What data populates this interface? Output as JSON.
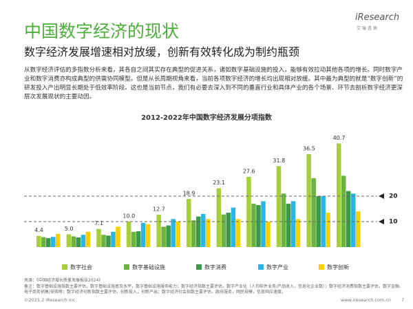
{
  "header": {
    "title": "中国数字经济的现状",
    "subtitle": "数字经济发展增速相对放缓，创新有效转化成为制约瓶颈",
    "logo": "iResearch",
    "logo_sub": "艾 瑞 咨 询"
  },
  "paragraph": "从数字经济评估的多指数分析来看，其各自之间其实存在典型的促进关系，诸如数字基础设施的投入，能够有效拉动其他各项的增长。同时数字产业和数字消费亦构成典型的供需协同模型。但是从长周期视角来看，当前各项数字经济的增长均出现相对放缓。其中最为典型的就是“数字创新”的研发投入产出明显长期处于低效率阶段。这也是当前节点，我们有必要去深入到不同的垂直行业和具体产业的各个场景、环节去剖析数字经济更深层次发展现状的主要动因。",
  "chart_data": {
    "type": "bar",
    "title": "2012-2022年中国数字经济发展分项指数",
    "categories": [
      null,
      null,
      null,
      null,
      null,
      null,
      null,
      null,
      null,
      null,
      null
    ],
    "series": [
      {
        "name": "数字社会",
        "color": "#a6cf3b",
        "values": [
          4.4,
          5.0,
          7.1,
          10.0,
          12.7,
          18.9,
          23.1,
          27.6,
          31.8,
          36.5,
          40.7
        ],
        "value_labels": [
          "4.4",
          "5.0",
          "7.1",
          "10.0",
          "12.7",
          "18.9",
          "23.1",
          "27.6",
          "31.8",
          "36.5",
          "40.7"
        ]
      },
      {
        "name": "数字基础设施",
        "color": "#6cb33f",
        "values": [
          3.9,
          4.2,
          4.8,
          6.0,
          8.0,
          10.5,
          12.8,
          17.0,
          21.0,
          27.0,
          28.0
        ]
      },
      {
        "name": "数字消费",
        "color": "#3a9a4a",
        "values": [
          3.5,
          3.8,
          4.5,
          6.2,
          8.5,
          12.0,
          13.5,
          16.5,
          17.0,
          20.0,
          22.0
        ]
      },
      {
        "name": "数字产业",
        "color": "#2ab5e6",
        "values": [
          4.0,
          4.8,
          6.0,
          9.5,
          11.0,
          13.0,
          15.5,
          18.0,
          18.0,
          20.0,
          21.0
        ]
      },
      {
        "name": "数字创新",
        "color": "#f5d000",
        "values": [
          5.2,
          6.0,
          8.0,
          9.0,
          10.0,
          11.0,
          11.0,
          10.0,
          11.0,
          13.5,
          14.0
        ]
      }
    ],
    "ylim": [
      0,
      45
    ],
    "reference_lines": [
      20,
      10
    ]
  },
  "footer": {
    "source": "来源：《中国经济增长质量发展报告2024》",
    "note": "备注：数字基础设施指数主要评估，数字基础设施普及水平，数字基础设施服务能力；数字经济指数主要评估，数字产业化（人均软件业务/产品收入，信息化企业数）；数字经济消费指数主要评估，数字金融、电子商务销售/采购等；数字经济创新指数主要评估，创新投入，创新产出；数字经济社会指数主要评估，政府服务，网民规模，信息响应速度。",
    "copyright": "©2025.2 iResearch Inc.",
    "url": "www.iresearch.com.cn",
    "page": "7"
  }
}
